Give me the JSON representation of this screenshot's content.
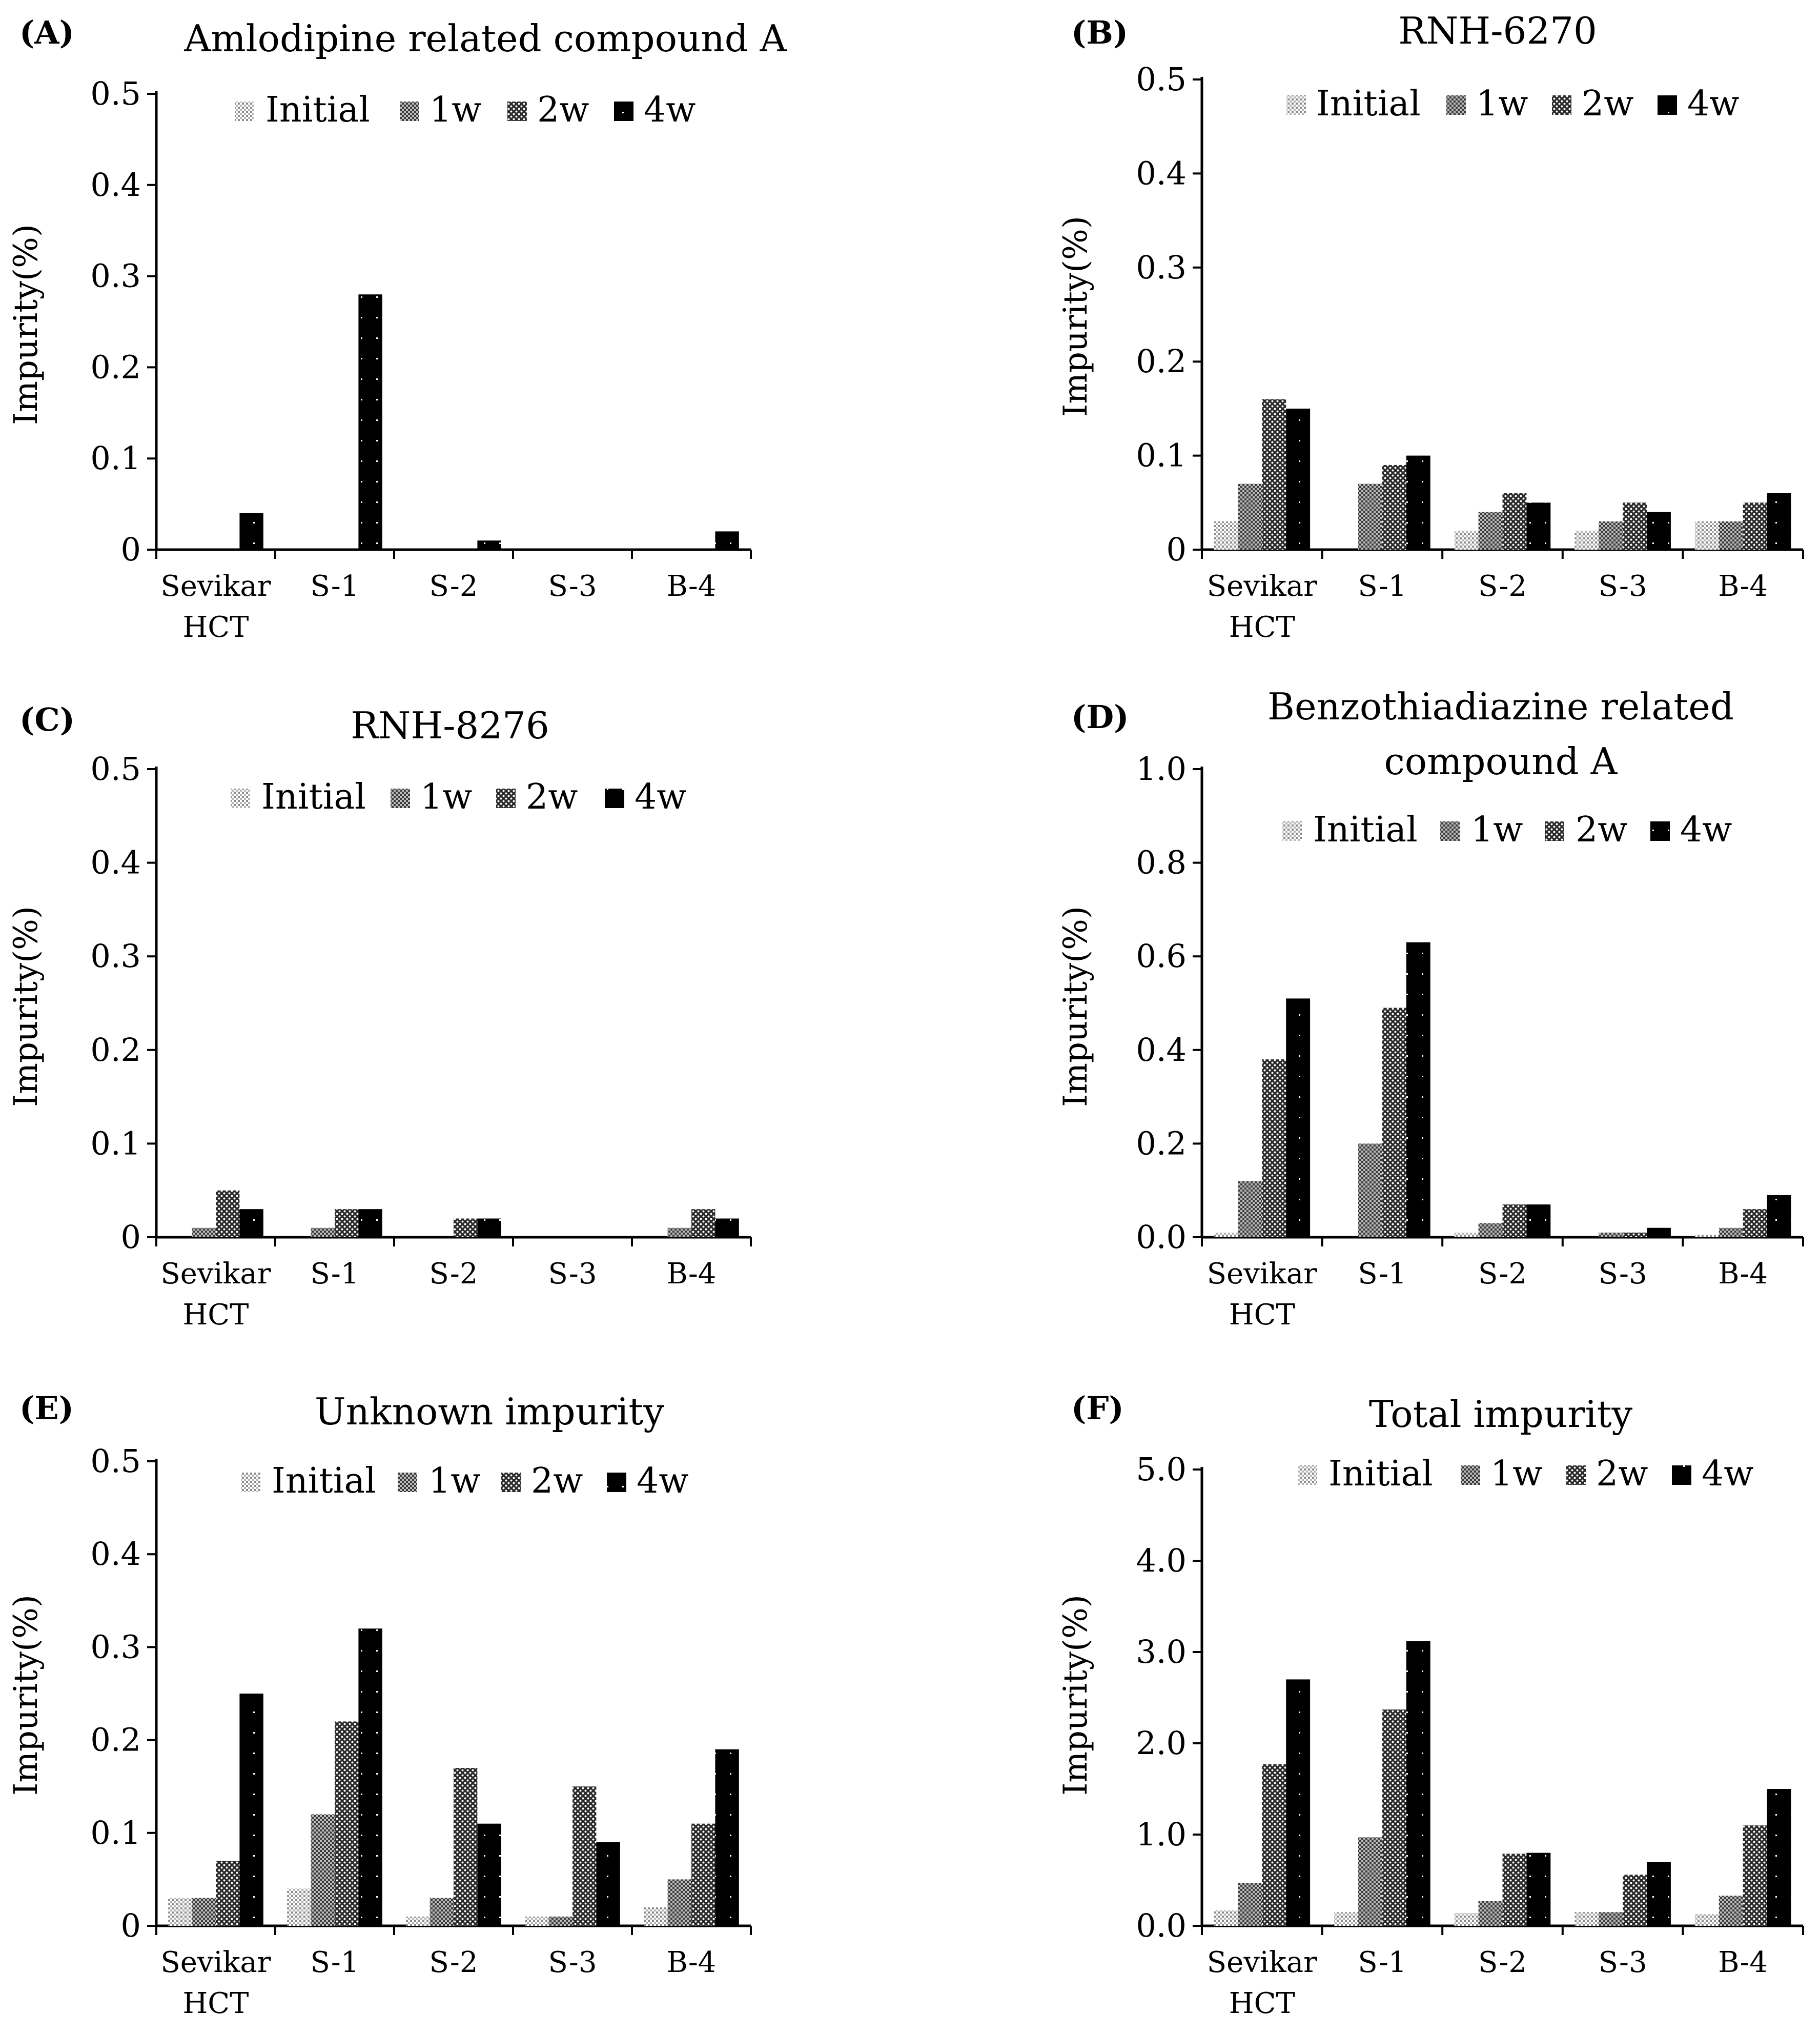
{
  "legend_labels": [
    "Initial",
    "1w",
    "2w",
    "4w"
  ],
  "colors": {
    "initial": "#d9d9d9",
    "w1": "#9a9a9a",
    "w2": "#555555",
    "w4": "#000000"
  },
  "chart_data": [
    {
      "panel": "(A)",
      "title_lines": [
        "Amlodipine related compound A"
      ],
      "type": "bar",
      "ylabel": "Impurity(%)",
      "ylim": [
        0,
        0.5
      ],
      "yticks": [
        "0",
        "0.1",
        "0.2",
        "0.3",
        "0.4",
        "0.5"
      ],
      "categories": [
        [
          "Sevikar",
          "HCT"
        ],
        [
          "S-1"
        ],
        [
          "S-2"
        ],
        [
          "S-3"
        ],
        [
          "B-4"
        ]
      ],
      "series": [
        {
          "name": "Initial",
          "values": [
            0,
            0,
            0,
            0,
            0
          ]
        },
        {
          "name": "1w",
          "values": [
            0,
            0,
            0,
            0,
            0
          ]
        },
        {
          "name": "2w",
          "values": [
            0,
            0,
            0,
            0,
            0
          ]
        },
        {
          "name": "4w",
          "values": [
            0.04,
            0.28,
            0.01,
            0,
            0.02
          ]
        }
      ]
    },
    {
      "panel": "(B)",
      "title_lines": [
        "RNH-6270"
      ],
      "type": "bar",
      "ylabel": "Impurity(%)",
      "ylim": [
        0,
        0.5
      ],
      "yticks": [
        "0",
        "0.1",
        "0.2",
        "0.3",
        "0.4",
        "0.5"
      ],
      "categories": [
        [
          "Sevikar",
          "HCT"
        ],
        [
          "S-1"
        ],
        [
          "S-2"
        ],
        [
          "S-3"
        ],
        [
          "B-4"
        ]
      ],
      "series": [
        {
          "name": "Initial",
          "values": [
            0.03,
            0,
            0.02,
            0.02,
            0.03
          ]
        },
        {
          "name": "1w",
          "values": [
            0.07,
            0.07,
            0.04,
            0.03,
            0.03
          ]
        },
        {
          "name": "2w",
          "values": [
            0.16,
            0.09,
            0.06,
            0.05,
            0.05
          ]
        },
        {
          "name": "4w",
          "values": [
            0.15,
            0.1,
            0.05,
            0.04,
            0.06
          ]
        }
      ]
    },
    {
      "panel": "(C)",
      "title_lines": [
        "RNH-8276"
      ],
      "type": "bar",
      "ylabel": "Impurity(%)",
      "ylim": [
        0,
        0.5
      ],
      "yticks": [
        "0",
        "0.1",
        "0.2",
        "0.3",
        "0.4",
        "0.5"
      ],
      "categories": [
        [
          "Sevikar",
          "HCT"
        ],
        [
          "S-1"
        ],
        [
          "S-2"
        ],
        [
          "S-3"
        ],
        [
          "B-4"
        ]
      ],
      "series": [
        {
          "name": "Initial",
          "values": [
            0,
            0,
            0,
            0,
            0
          ]
        },
        {
          "name": "1w",
          "values": [
            0.01,
            0.01,
            0,
            0,
            0.01
          ]
        },
        {
          "name": "2w",
          "values": [
            0.05,
            0.03,
            0.02,
            0,
            0.03
          ]
        },
        {
          "name": "4w",
          "values": [
            0.03,
            0.03,
            0.02,
            0,
            0.02
          ]
        }
      ]
    },
    {
      "panel": "(D)",
      "title_lines": [
        "Benzothiadiazine related",
        "compound A"
      ],
      "type": "bar",
      "ylabel": "Impurity(%)",
      "ylim": [
        0,
        1.0
      ],
      "yticks": [
        "0.0",
        "0.2",
        "0.4",
        "0.6",
        "0.8",
        "1.0"
      ],
      "categories": [
        [
          "Sevikar",
          "HCT"
        ],
        [
          "S-1"
        ],
        [
          "S-2"
        ],
        [
          "S-3"
        ],
        [
          "B-4"
        ]
      ],
      "series": [
        {
          "name": "Initial",
          "values": [
            0.01,
            0,
            0.01,
            0,
            0.005
          ]
        },
        {
          "name": "1w",
          "values": [
            0.12,
            0.2,
            0.03,
            0.01,
            0.02
          ]
        },
        {
          "name": "2w",
          "values": [
            0.38,
            0.49,
            0.07,
            0.01,
            0.06
          ]
        },
        {
          "name": "4w",
          "values": [
            0.51,
            0.63,
            0.07,
            0.02,
            0.09
          ]
        }
      ]
    },
    {
      "panel": "(E)",
      "title_lines": [
        "Unknown impurity"
      ],
      "type": "bar",
      "ylabel": "Impurity(%)",
      "ylim": [
        0,
        0.5
      ],
      "yticks": [
        "0",
        "0.1",
        "0.2",
        "0.3",
        "0.4",
        "0.5"
      ],
      "categories": [
        [
          "Sevikar",
          "HCT"
        ],
        [
          "S-1"
        ],
        [
          "S-2"
        ],
        [
          "S-3"
        ],
        [
          "B-4"
        ]
      ],
      "series": [
        {
          "name": "Initial",
          "values": [
            0.03,
            0.04,
            0.01,
            0.01,
            0.02
          ]
        },
        {
          "name": "1w",
          "values": [
            0.03,
            0.12,
            0.03,
            0.01,
            0.05
          ]
        },
        {
          "name": "2w",
          "values": [
            0.07,
            0.22,
            0.17,
            0.15,
            0.11
          ]
        },
        {
          "name": "4w",
          "values": [
            0.25,
            0.32,
            0.11,
            0.09,
            0.19
          ]
        }
      ]
    },
    {
      "panel": "(F)",
      "title_lines": [
        "Total impurity"
      ],
      "type": "bar",
      "ylabel": "Impurity(%)",
      "ylim": [
        0,
        5.0
      ],
      "yticks": [
        "0.0",
        "1.0",
        "2.0",
        "3.0",
        "4.0",
        "5.0"
      ],
      "categories": [
        [
          "Sevikar",
          "HCT"
        ],
        [
          "S-1"
        ],
        [
          "S-2"
        ],
        [
          "S-3"
        ],
        [
          "B-4"
        ]
      ],
      "series": [
        {
          "name": "Initial",
          "values": [
            0.17,
            0.15,
            0.14,
            0.15,
            0.13
          ]
        },
        {
          "name": "1w",
          "values": [
            0.47,
            0.97,
            0.27,
            0.15,
            0.33
          ]
        },
        {
          "name": "2w",
          "values": [
            1.77,
            2.37,
            0.79,
            0.56,
            1.1
          ]
        },
        {
          "name": "4w",
          "values": [
            2.7,
            3.12,
            0.8,
            0.7,
            1.5
          ]
        }
      ]
    }
  ]
}
